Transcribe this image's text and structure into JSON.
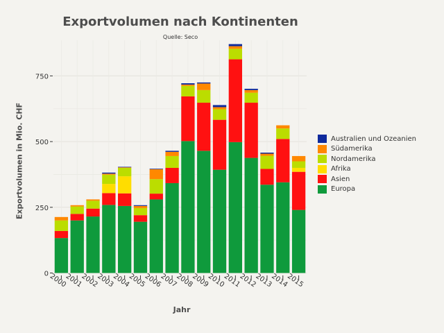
{
  "chart_data": {
    "type": "bar",
    "stacked": true,
    "title": "Exportvolumen nach Kontinenten",
    "subtitle": "Quelle: Seco",
    "xlabel": "Jahr",
    "ylabel": "Exportvolumen in Mio. CHF",
    "ylim": [
      0,
      830
    ],
    "yticks": [
      0,
      250,
      500,
      750
    ],
    "ytick_labels": [
      "0",
      "250",
      "500",
      "750"
    ],
    "grid": true,
    "legend_position": "right",
    "categories": [
      "2000",
      "2001",
      "2002",
      "2003",
      "2004",
      "2005",
      "2006",
      "2007",
      "2008",
      "2009",
      "2010",
      "2011",
      "2012",
      "2013",
      "2014",
      "2015"
    ],
    "series": [
      {
        "name": "Europa",
        "color": "#0f9a3c",
        "values": [
          133,
          200,
          215,
          259,
          255,
          195,
          280,
          342,
          502,
          465,
          393,
          498,
          438,
          336,
          345,
          240
        ]
      },
      {
        "name": "Asien",
        "color": "#ff1111",
        "values": [
          27,
          25,
          30,
          45,
          48,
          25,
          22,
          58,
          170,
          183,
          190,
          315,
          210,
          60,
          165,
          145
        ]
      },
      {
        "name": "Afrika",
        "color": "#ffdd00",
        "values": [
          0,
          0,
          0,
          35,
          65,
          0,
          0,
          0,
          0,
          0,
          0,
          0,
          0,
          0,
          0,
          15
        ]
      },
      {
        "name": "Nordamerika",
        "color": "#bbdd00",
        "values": [
          40,
          28,
          30,
          35,
          32,
          27,
          55,
          45,
          40,
          48,
          40,
          40,
          38,
          50,
          40,
          25
        ]
      },
      {
        "name": "Südamerika",
        "color": "#ff8800",
        "values": [
          13,
          5,
          5,
          4,
          2,
          8,
          38,
          16,
          5,
          25,
          8,
          10,
          10,
          8,
          12,
          20
        ]
      },
      {
        "name": "Australien und Ozeanien",
        "color": "#0e2a9c",
        "values": [
          0,
          0,
          0,
          4,
          2,
          3,
          2,
          4,
          5,
          4,
          8,
          8,
          5,
          4,
          0,
          0
        ]
      }
    ]
  }
}
